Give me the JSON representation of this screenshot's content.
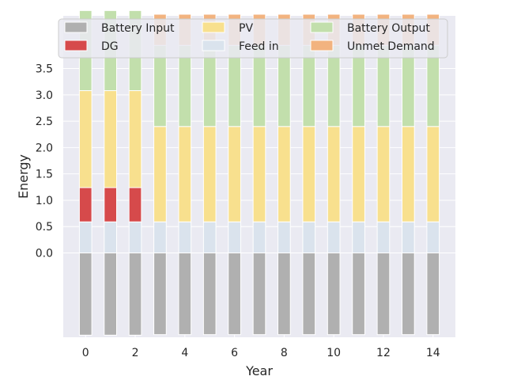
{
  "chart_data": {
    "type": "bar",
    "stacked": true,
    "xlabel": "Year",
    "ylabel": "Energy",
    "x": [
      0,
      1,
      2,
      3,
      4,
      5,
      6,
      7,
      8,
      9,
      10,
      11,
      12,
      13,
      14
    ],
    "xticks": [
      0,
      2,
      4,
      6,
      8,
      10,
      12,
      14
    ],
    "yticks": [
      0.0,
      0.5,
      1.0,
      1.5,
      2.0,
      2.5,
      3.0,
      3.5
    ],
    "ytick_labels": [
      "0.0",
      "0.5",
      "1.0",
      "1.5",
      "2.0",
      "2.5",
      "3.0",
      "3.5"
    ],
    "ylim": [
      -1.6,
      4.5
    ],
    "grid": true,
    "legend_position": "top-center",
    "legend_columns": 3,
    "series": [
      {
        "name": "Battery Input",
        "color": "#b0b0b0",
        "stack": "negative",
        "values": [
          -1.56,
          -1.56,
          -1.56,
          -1.55,
          -1.55,
          -1.55,
          -1.55,
          -1.55,
          -1.55,
          -1.55,
          -1.55,
          -1.55,
          -1.55,
          -1.55,
          -1.55
        ]
      },
      {
        "name": "Feed in",
        "color": "#dae3ed",
        "stack": "positive",
        "values": [
          0.59,
          0.59,
          0.59,
          0.59,
          0.59,
          0.59,
          0.59,
          0.59,
          0.59,
          0.59,
          0.59,
          0.59,
          0.59,
          0.59,
          0.59
        ]
      },
      {
        "name": "DG",
        "color": "#d64a4b",
        "stack": "positive",
        "values": [
          0.65,
          0.65,
          0.65,
          0,
          0,
          0,
          0,
          0,
          0,
          0,
          0,
          0,
          0,
          0,
          0
        ]
      },
      {
        "name": "PV",
        "color": "#f8e08e",
        "stack": "positive",
        "values": [
          1.84,
          1.84,
          1.84,
          1.81,
          1.81,
          1.81,
          1.81,
          1.81,
          1.81,
          1.81,
          1.81,
          1.81,
          1.81,
          1.81,
          1.81
        ]
      },
      {
        "name": "Battery Output",
        "color": "#c2dfac",
        "stack": "positive",
        "values": [
          1.52,
          1.52,
          1.52,
          1.54,
          1.54,
          1.54,
          1.54,
          1.54,
          1.54,
          1.54,
          1.54,
          1.54,
          1.54,
          1.54,
          1.54
        ]
      },
      {
        "name": "Unmet Demand",
        "color": "#f2b37f",
        "stack": "positive",
        "values": [
          0,
          0,
          0,
          0.59,
          0.59,
          0.59,
          0.59,
          0.59,
          0.59,
          0.59,
          0.59,
          0.59,
          0.59,
          0.59,
          0.59
        ]
      }
    ],
    "legend_entries": [
      {
        "name": "Battery Input",
        "color": "#b0b0b0"
      },
      {
        "name": "PV",
        "color": "#f8e08e"
      },
      {
        "name": "Battery Output",
        "color": "#c2dfac"
      },
      {
        "name": "DG",
        "color": "#d64a4b"
      },
      {
        "name": "Feed in",
        "color": "#dae3ed"
      },
      {
        "name": "Unmet Demand",
        "color": "#f2b37f"
      }
    ],
    "colors": {
      "plot_background": "#eaeaf2",
      "grid": "#ffffff",
      "text": "#262626"
    }
  }
}
